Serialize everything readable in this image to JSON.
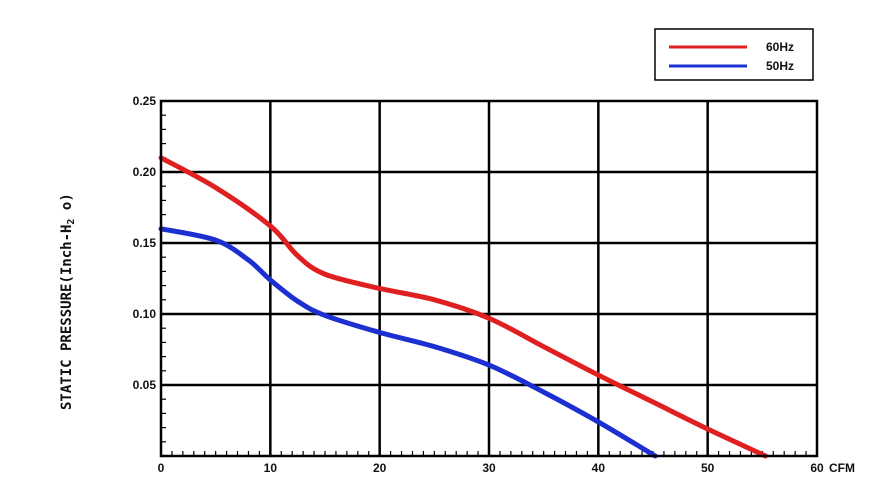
{
  "chart_data": {
    "type": "line",
    "xlabel": "CFM",
    "ylabel_main": "STATIC PRESSURE(Inch-H",
    "ylabel_sub": "2",
    "ylabel_end": " o)",
    "xlim": [
      0,
      60
    ],
    "ylim": [
      0,
      0.25
    ],
    "x_ticks": [
      0,
      10,
      20,
      30,
      40,
      50,
      60
    ],
    "x_tick_labels": [
      "0",
      "10",
      "20",
      "30",
      "40",
      "50",
      "60"
    ],
    "y_ticks": [
      0.05,
      0.1,
      0.15,
      0.2,
      0.25
    ],
    "y_tick_labels": [
      "0.05",
      "0.10",
      "0.15",
      "0.20",
      "0.25"
    ],
    "grid": true,
    "legend_position": "top-right",
    "series": [
      {
        "name": "60Hz",
        "color": "#e02020",
        "x": [
          0,
          5,
          10,
          12.5,
          15,
          20,
          25,
          30,
          35,
          40,
          45,
          50,
          55.3
        ],
        "y": [
          0.21,
          0.189,
          0.162,
          0.141,
          0.128,
          0.118,
          0.11,
          0.097,
          0.077,
          0.057,
          0.038,
          0.019,
          0.0
        ]
      },
      {
        "name": "50Hz",
        "color": "#1c2fd0",
        "x": [
          0,
          5,
          8,
          10,
          12.5,
          15,
          20,
          25,
          30,
          35,
          40,
          45.2
        ],
        "y": [
          0.16,
          0.152,
          0.138,
          0.124,
          0.109,
          0.099,
          0.087,
          0.077,
          0.064,
          0.045,
          0.024,
          0.0
        ]
      }
    ]
  }
}
